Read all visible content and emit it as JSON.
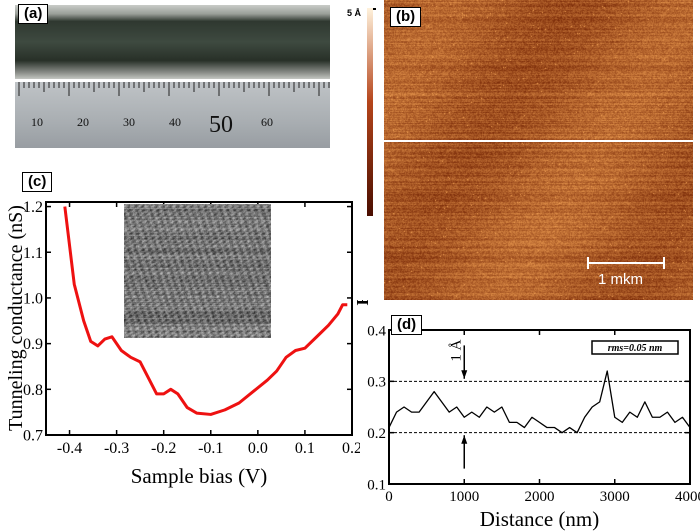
{
  "panels": {
    "a": "(a)",
    "b": "(b)",
    "c": "(c)",
    "d": "(d)"
  },
  "panel_b": {
    "colorbar_max": "5 Å",
    "colorbar_colors": [
      "#4a0e00",
      "#b5451b",
      "#fff2dc"
    ],
    "scale_bar": "1 mkm"
  },
  "panel_a": {
    "ruler_numbers": [
      "10",
      "20",
      "30",
      "40",
      "50",
      "60"
    ]
  },
  "chart_data": [
    {
      "type": "line",
      "panel": "c",
      "xlabel": "Sample bias (V)",
      "ylabel": "Tunneling conductance (nS)",
      "xlim": [
        -0.45,
        0.2
      ],
      "ylim": [
        0.7,
        1.21
      ],
      "xticks": [
        "-0.4",
        "-0.3",
        "-0.2",
        "-0.1",
        "0.0",
        "0.1",
        "0.2"
      ],
      "yticks": [
        "0.7",
        "0.8",
        "0.9",
        "1.0",
        "1.1",
        "1.2"
      ],
      "grid": false,
      "color": "#ee1111",
      "x": [
        -0.41,
        -0.39,
        -0.37,
        -0.355,
        -0.34,
        -0.325,
        -0.31,
        -0.29,
        -0.27,
        -0.25,
        -0.23,
        -0.215,
        -0.2,
        -0.185,
        -0.17,
        -0.15,
        -0.13,
        -0.1,
        -0.07,
        -0.04,
        -0.01,
        0.02,
        0.04,
        0.06,
        0.08,
        0.1,
        0.13,
        0.15,
        0.17,
        0.18,
        0.19
      ],
      "y": [
        1.2,
        1.03,
        0.95,
        0.905,
        0.895,
        0.91,
        0.915,
        0.885,
        0.87,
        0.86,
        0.82,
        0.79,
        0.79,
        0.8,
        0.79,
        0.76,
        0.748,
        0.745,
        0.755,
        0.77,
        0.795,
        0.82,
        0.84,
        0.87,
        0.885,
        0.89,
        0.92,
        0.94,
        0.965,
        0.985,
        0.985
      ]
    },
    {
      "type": "line",
      "panel": "d",
      "xlabel": "Distance (nm)",
      "ylabel": "Hight (nm)",
      "xlim": [
        0,
        4000
      ],
      "ylim": [
        0.1,
        0.4
      ],
      "xticks": [
        "0",
        "1000",
        "2000",
        "3000",
        "4000"
      ],
      "yticks": [
        "0.1",
        "0.2",
        "0.3",
        "0.4"
      ],
      "grid": false,
      "color": "#000000",
      "reference_lines": [
        0.2,
        0.3
      ],
      "annotation": "1 Å",
      "legend_text": "rms=0.05 nm",
      "x": [
        0,
        100,
        200,
        300,
        400,
        500,
        600,
        700,
        800,
        900,
        1000,
        1100,
        1200,
        1300,
        1400,
        1500,
        1600,
        1700,
        1800,
        1900,
        2000,
        2100,
        2200,
        2300,
        2400,
        2500,
        2600,
        2700,
        2800,
        2900,
        3000,
        3100,
        3200,
        3300,
        3400,
        3500,
        3600,
        3700,
        3800,
        3900,
        4000
      ],
      "y": [
        0.21,
        0.24,
        0.25,
        0.24,
        0.24,
        0.26,
        0.28,
        0.26,
        0.24,
        0.25,
        0.23,
        0.24,
        0.23,
        0.25,
        0.24,
        0.25,
        0.22,
        0.22,
        0.21,
        0.23,
        0.22,
        0.21,
        0.21,
        0.2,
        0.21,
        0.2,
        0.23,
        0.25,
        0.26,
        0.32,
        0.23,
        0.22,
        0.24,
        0.23,
        0.26,
        0.23,
        0.23,
        0.24,
        0.22,
        0.23,
        0.21
      ]
    }
  ]
}
